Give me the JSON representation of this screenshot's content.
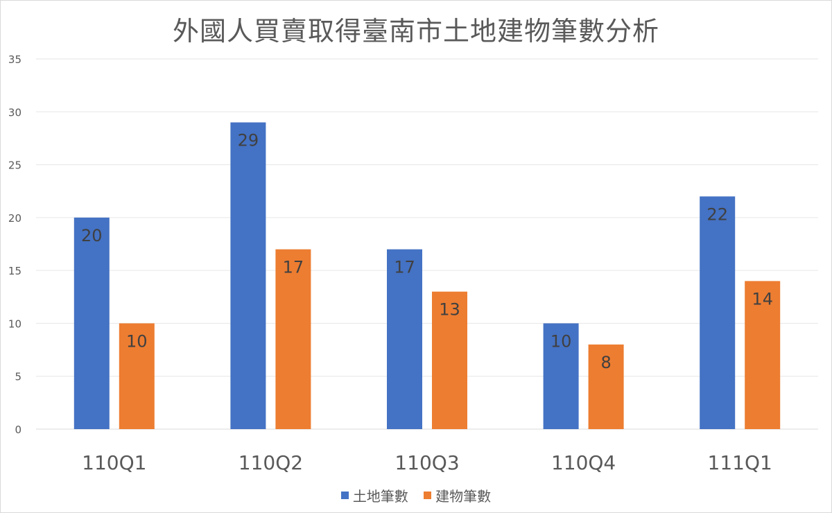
{
  "chart_data": {
    "type": "bar",
    "title": "外國人買賣取得臺南市土地建物筆數分析",
    "categories": [
      "110Q1",
      "110Q2",
      "110Q3",
      "110Q4",
      "111Q1"
    ],
    "series": [
      {
        "name": "土地筆數",
        "values": [
          20,
          29,
          17,
          10,
          22
        ],
        "color": "#4472C4"
      },
      {
        "name": "建物筆數",
        "values": [
          10,
          17,
          13,
          8,
          14
        ],
        "color": "#ED7D31"
      }
    ],
    "ylim": [
      0,
      35
    ],
    "yticks": [
      0,
      5,
      10,
      15,
      20,
      25,
      30,
      35
    ],
    "grid": true,
    "data_labels": true,
    "legend_position": "bottom"
  }
}
